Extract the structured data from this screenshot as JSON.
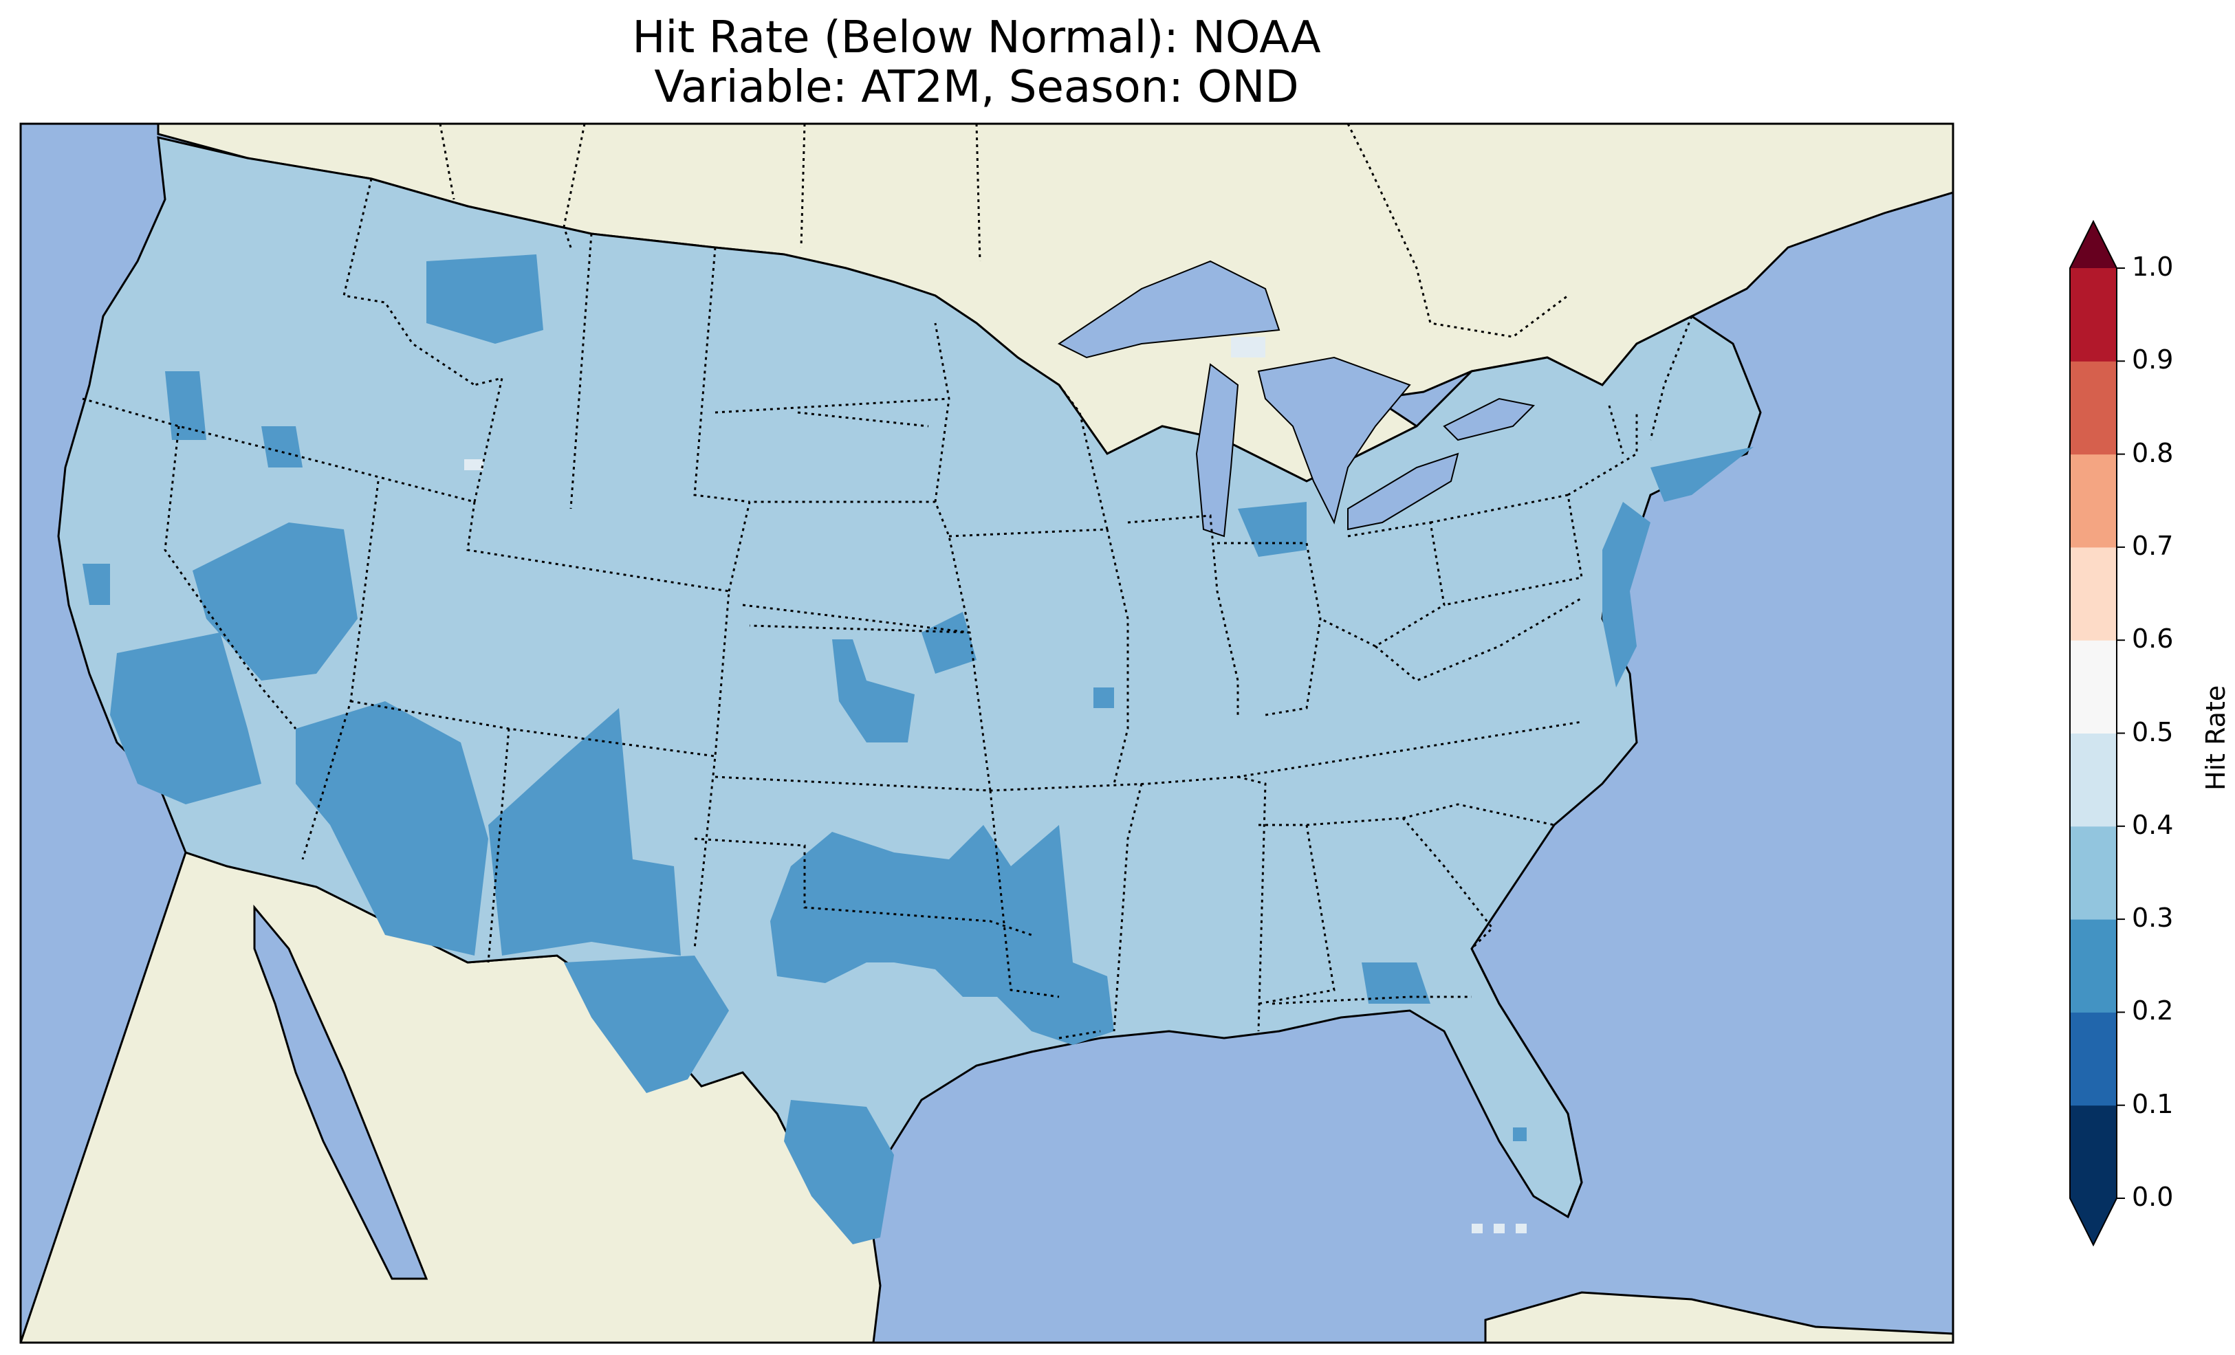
{
  "title": {
    "line1": "Hit Rate (Below Normal): NOAA",
    "line2": "Variable: AT2M, Season: OND"
  },
  "map": {
    "projection": "lat-lon",
    "extent": {
      "lon": [
        -125,
        -67
      ],
      "lat": [
        20,
        52
      ]
    },
    "colors": {
      "ocean": "#97b6e1",
      "land": "#efefdb",
      "border": "#000000"
    },
    "features": [
      "coastlines",
      "country borders",
      "state borders (dotted)",
      "Great Lakes"
    ]
  },
  "colorbar": {
    "label": "Hit Rate",
    "ticks": [
      "0.0",
      "0.1",
      "0.2",
      "0.3",
      "0.4",
      "0.5",
      "0.6",
      "0.7",
      "0.8",
      "0.9",
      "1.0"
    ],
    "colors": [
      "#053061",
      "#2166ac",
      "#4393c3",
      "#92c5de",
      "#d1e5f0",
      "#f7f7f7",
      "#fddbc7",
      "#f4a582",
      "#d6604d",
      "#b2182b",
      "#67001f"
    ],
    "extend": "both"
  },
  "bins": {
    "b23": "#5199c9",
    "b34": "#a8cde2",
    "b45": "#e2ecf3"
  }
}
